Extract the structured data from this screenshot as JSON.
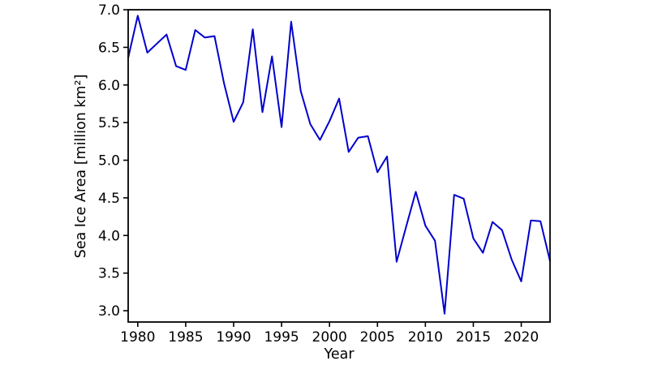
{
  "figure": {
    "background_color": "#ffffff",
    "axes_color": "#000000"
  },
  "chart_data": {
    "type": "line",
    "title": "",
    "xlabel": "Year",
    "ylabel": "Sea Ice Area [million km²]",
    "line_color": "#0000CD",
    "line_width": 2,
    "grid": false,
    "legend_position": "none",
    "xlim": [
      1979,
      2023
    ],
    "ylim": [
      2.85,
      7.0
    ],
    "xticks": [
      1980,
      1985,
      1990,
      1995,
      2000,
      2005,
      2010,
      2015,
      2020
    ],
    "xtick_labels": [
      "1980",
      "1985",
      "1990",
      "1995",
      "2000",
      "2005",
      "2010",
      "2015",
      "2020"
    ],
    "yticks": [
      3.0,
      3.5,
      4.0,
      4.5,
      5.0,
      5.5,
      6.0,
      6.5,
      7.0
    ],
    "ytick_labels": [
      "3.0",
      "3.5",
      "4.0",
      "4.5",
      "5.0",
      "5.5",
      "6.0",
      "6.5",
      "7.0"
    ],
    "x": [
      1979,
      1980,
      1981,
      1982,
      1983,
      1984,
      1985,
      1986,
      1987,
      1988,
      1989,
      1990,
      1991,
      1992,
      1993,
      1994,
      1995,
      1996,
      1997,
      1998,
      1999,
      2000,
      2001,
      2002,
      2003,
      2004,
      2005,
      2006,
      2007,
      2008,
      2009,
      2010,
      2011,
      2012,
      2013,
      2014,
      2015,
      2016,
      2017,
      2018,
      2019,
      2020,
      2021,
      2022,
      2023
    ],
    "values": [
      6.36,
      6.92,
      6.43,
      6.55,
      6.67,
      6.25,
      6.2,
      6.73,
      6.63,
      6.65,
      6.02,
      5.51,
      5.77,
      6.74,
      5.64,
      6.38,
      5.44,
      6.84,
      5.92,
      5.48,
      5.27,
      5.52,
      5.82,
      5.11,
      5.3,
      5.32,
      4.84,
      5.05,
      3.65,
      4.12,
      4.58,
      4.13,
      3.93,
      2.96,
      4.54,
      4.49,
      3.96,
      3.77,
      4.18,
      4.07,
      3.68,
      3.39,
      4.2,
      4.19,
      3.66
    ]
  }
}
